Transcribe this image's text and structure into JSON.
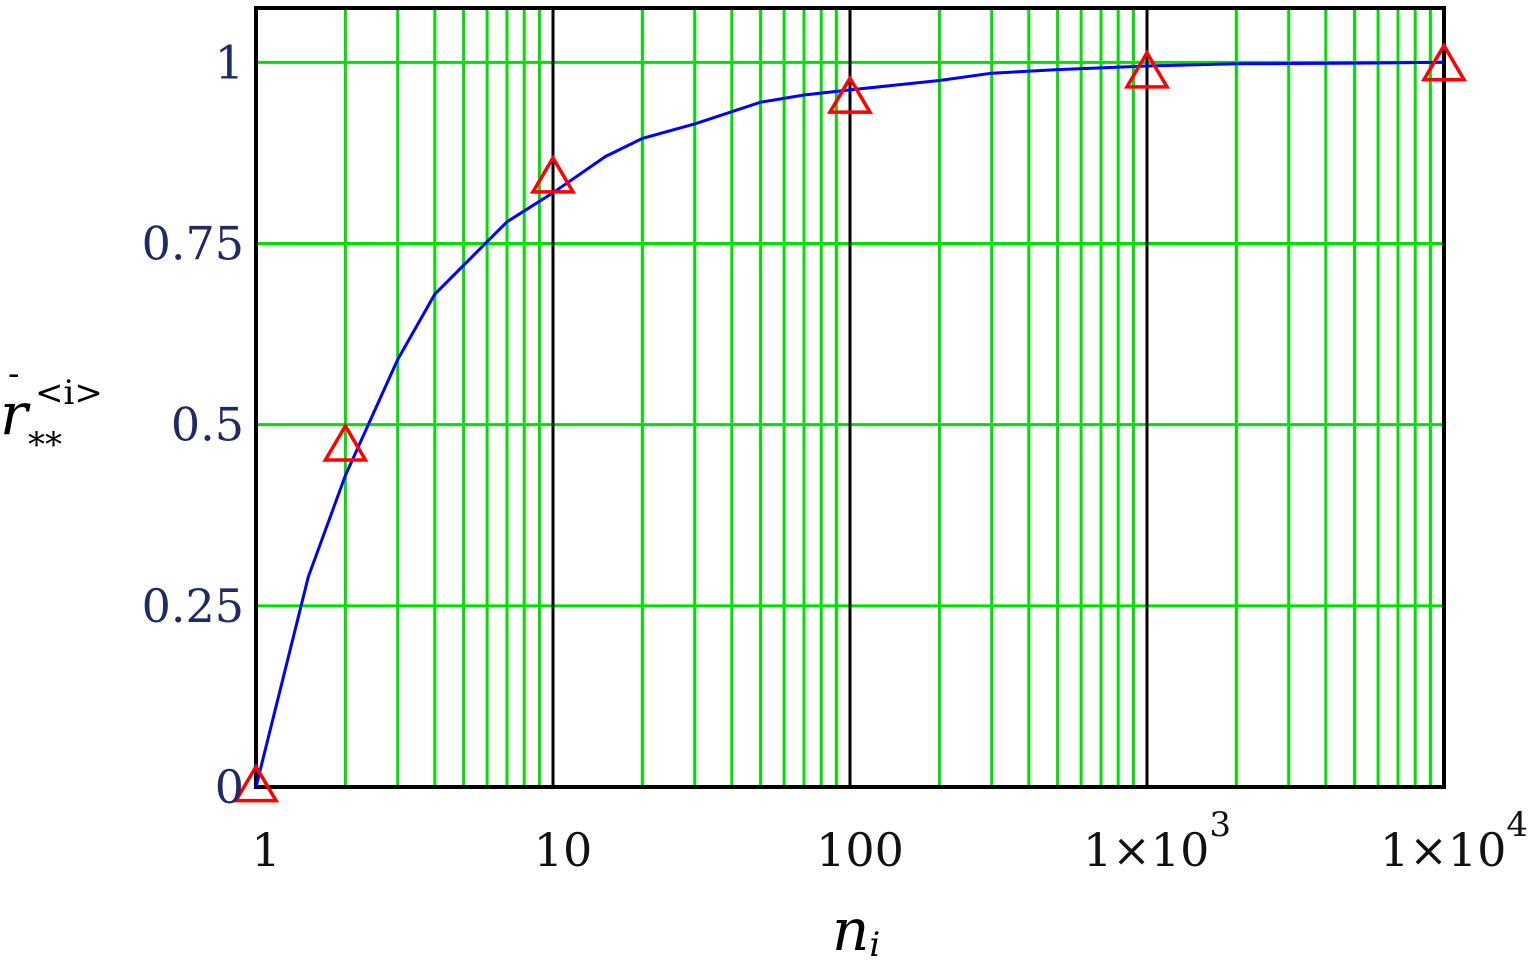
{
  "chart_data": {
    "type": "line",
    "xscale": "log",
    "xlim": [
      1,
      10000
    ],
    "ylim": [
      0,
      1.075
    ],
    "grid": true,
    "xlabel": "n",
    "xlabel_sub": "i",
    "ylabel": "r",
    "ylabel_sub": "**",
    "ylabel_sup": "<i>",
    "xticks": [
      1,
      10,
      100,
      1000,
      10000
    ],
    "xtick_labels": [
      "1",
      "10",
      "100",
      "1×10",
      "1×10"
    ],
    "xtick_exponents": [
      "",
      "",
      "",
      "3",
      "4"
    ],
    "yticks": [
      0,
      0.25,
      0.5,
      0.75,
      1
    ],
    "ytick_labels": [
      "0",
      "0.25",
      "0.5",
      "0.75",
      "1"
    ],
    "colors": {
      "major_grid": "#000000",
      "minor_grid": "#00e000",
      "curve": "#0000ff",
      "markers": "#ff0000"
    },
    "series": [
      {
        "style": "line",
        "color": "#0000ff",
        "x": [
          1,
          1.5,
          2,
          3,
          4,
          5,
          7,
          10,
          15,
          20,
          30,
          50,
          70,
          100,
          200,
          300,
          500,
          1000,
          2000,
          5000,
          10000
        ],
        "y": [
          0,
          0.29,
          0.43,
          0.59,
          0.68,
          0.72,
          0.78,
          0.82,
          0.87,
          0.895,
          0.915,
          0.945,
          0.955,
          0.962,
          0.975,
          0.985,
          0.99,
          0.995,
          0.998,
          0.999,
          1.0
        ]
      },
      {
        "style": "marker-triangle",
        "color": "#ff0000",
        "x": [
          1,
          2,
          10,
          100,
          1000,
          10000
        ],
        "y": [
          0,
          0.47,
          0.84,
          0.95,
          0.985,
          0.995
        ]
      }
    ]
  }
}
